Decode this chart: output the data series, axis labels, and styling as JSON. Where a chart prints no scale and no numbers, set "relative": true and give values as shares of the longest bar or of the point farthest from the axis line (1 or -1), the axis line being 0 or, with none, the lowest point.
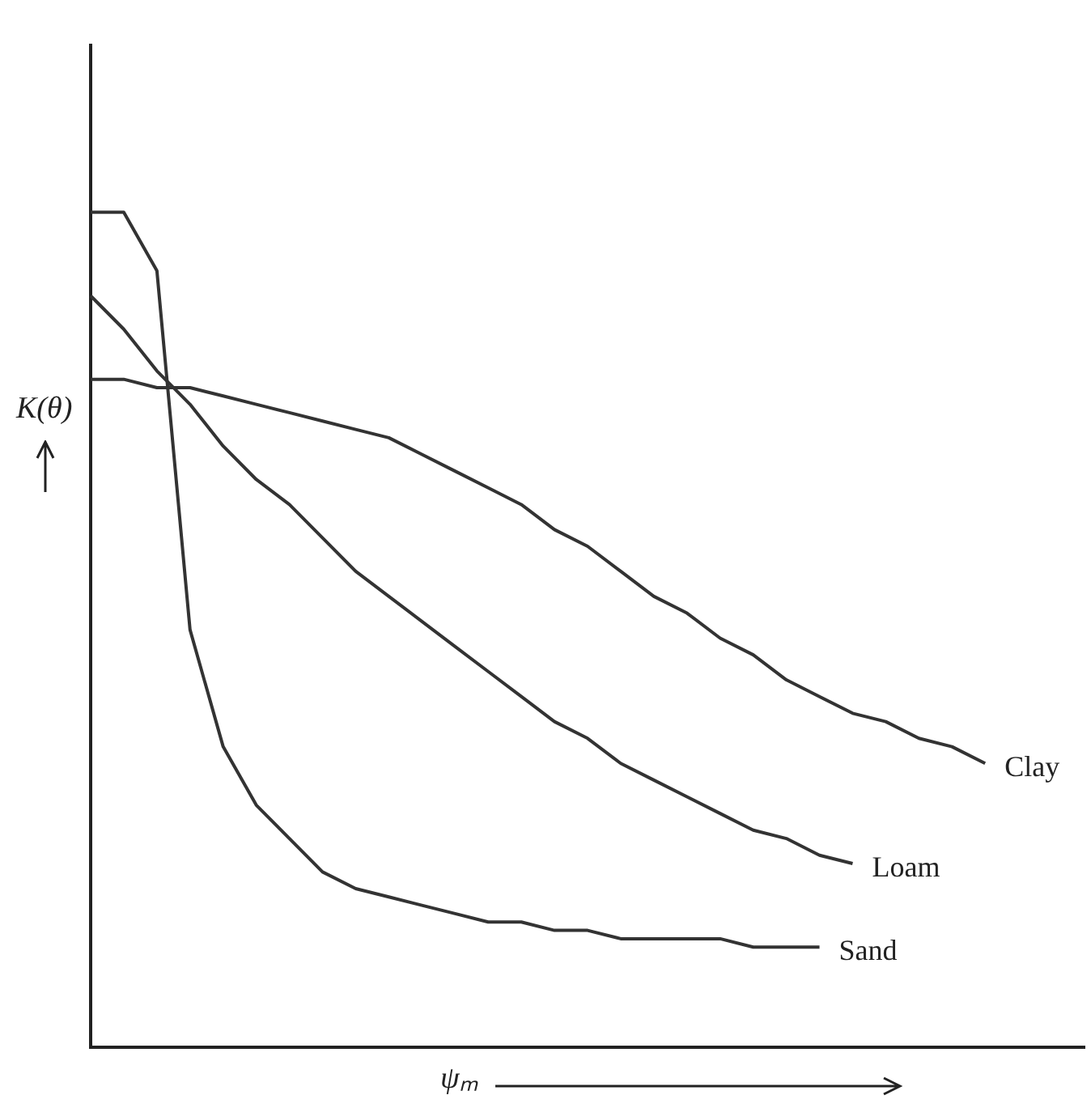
{
  "chart_data": {
    "type": "line",
    "xlabel": "ψₘ",
    "ylabel": "K(θ)",
    "relative": true,
    "legend": false,
    "tick_labels": false,
    "marker": "none",
    "line_style": "solid",
    "categories": [
      null,
      null,
      null,
      null,
      null,
      null,
      null,
      null,
      null,
      null,
      null,
      null,
      null,
      null,
      null,
      null,
      null,
      null,
      null,
      null,
      null,
      null,
      null,
      null,
      null,
      null,
      null,
      null,
      null,
      null,
      null
    ],
    "series": [
      {
        "name": "Clay",
        "color": "#333333",
        "values": [
          0.8,
          0.8,
          0.79,
          0.79,
          0.78,
          0.77,
          0.76,
          0.75,
          0.74,
          0.73,
          0.71,
          0.69,
          0.67,
          0.65,
          0.62,
          0.6,
          0.57,
          0.54,
          0.52,
          0.49,
          0.47,
          0.44,
          0.42,
          0.4,
          0.39,
          0.37,
          0.36,
          0.34,
          null,
          null,
          null
        ]
      },
      {
        "name": "Loam",
        "color": "#333333",
        "values": [
          0.9,
          0.86,
          0.81,
          0.77,
          0.72,
          0.68,
          0.65,
          0.61,
          0.57,
          0.54,
          0.51,
          0.48,
          0.45,
          0.42,
          0.39,
          0.37,
          0.34,
          0.32,
          0.3,
          0.28,
          0.26,
          0.25,
          0.23,
          0.22,
          null,
          null,
          null,
          null,
          null,
          null,
          null
        ]
      },
      {
        "name": "Sand",
        "color": "#333333",
        "values": [
          1.0,
          1.0,
          0.93,
          0.5,
          0.36,
          0.29,
          0.25,
          0.21,
          0.19,
          0.18,
          0.17,
          0.16,
          0.15,
          0.15,
          0.14,
          0.14,
          0.13,
          0.13,
          0.13,
          0.13,
          0.12,
          0.12,
          0.12,
          null,
          null,
          null,
          null,
          null,
          null,
          null,
          null
        ]
      }
    ]
  }
}
